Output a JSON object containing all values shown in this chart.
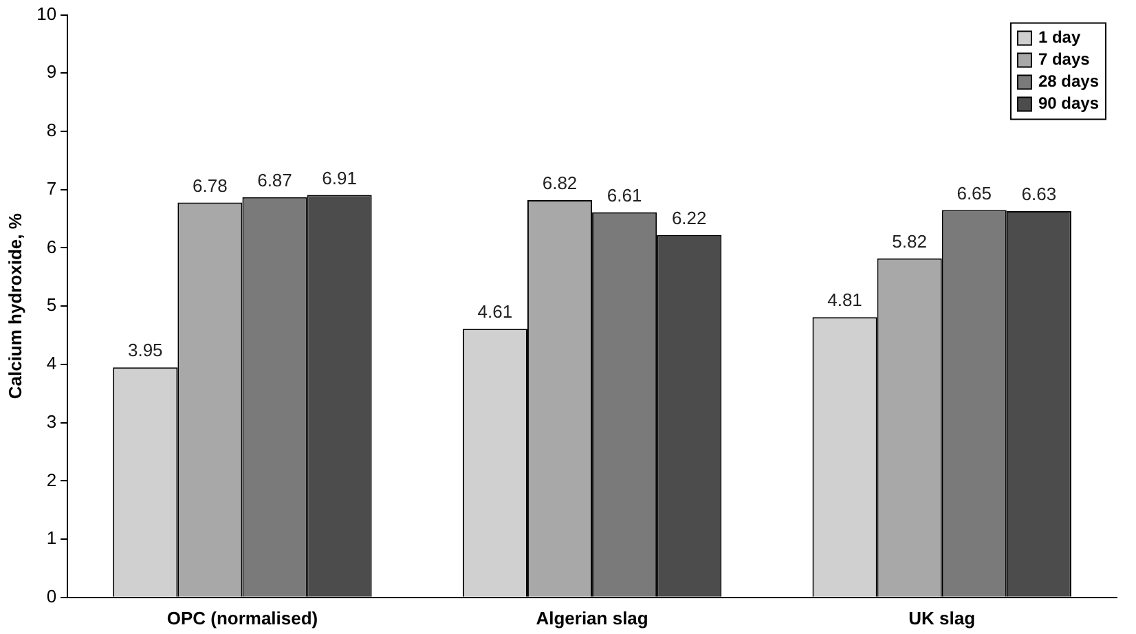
{
  "chart_data": {
    "type": "bar",
    "ylabel": "Calcium hydroxide, %",
    "categories": [
      "OPC (normalised)",
      "Algerian slag",
      "UK slag"
    ],
    "series": [
      {
        "name": "1 day",
        "color": "#d0d0d0",
        "values": [
          3.95,
          4.61,
          4.81
        ]
      },
      {
        "name": "7 days",
        "color": "#a8a8a8",
        "values": [
          6.78,
          6.82,
          5.82
        ]
      },
      {
        "name": "28 days",
        "color": "#7a7a7a",
        "values": [
          6.87,
          6.61,
          6.65
        ]
      },
      {
        "name": "90 days",
        "color": "#4c4c4c",
        "values": [
          6.91,
          6.22,
          6.63
        ]
      }
    ],
    "ylim": [
      0,
      10
    ],
    "yticks": [
      0,
      1,
      2,
      3,
      4,
      5,
      6,
      7,
      8,
      9,
      10
    ],
    "grid": false,
    "legend": "top right",
    "data_labels": true
  }
}
